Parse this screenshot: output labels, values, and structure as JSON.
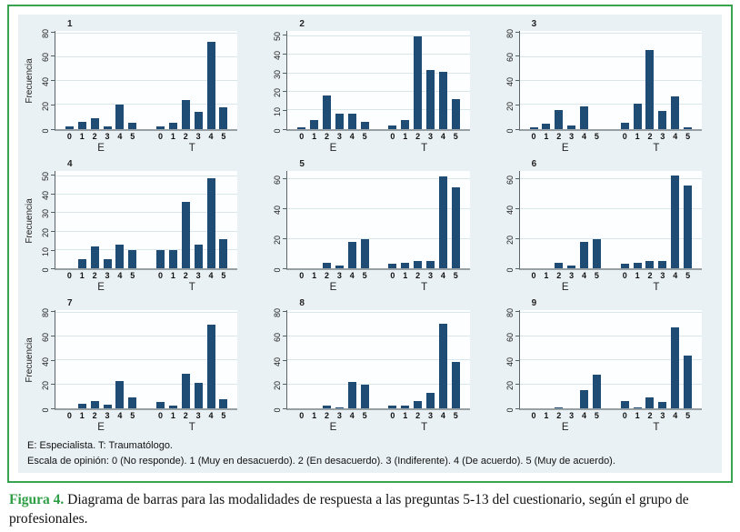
{
  "colors": {
    "bar": "#1e4c75",
    "frame_border": "#3aa34f",
    "graph_bg": "#eaf1f4",
    "plot_bg": "#fcfeff",
    "gridline": "#d9e7ea",
    "caption_accent": "#2e9e44"
  },
  "figure": {
    "notes_line1": "E: Especialista. T: Traumatólogo.",
    "notes_line2": "Escala de opinión: 0 (No responde). 1 (Muy en desacuerdo). 2 (En desacuerdo). 3 (Indiferente). 4 (De acuerdo). 5 (Muy de acuerdo).",
    "caption_label": "Figura 4.",
    "caption_text": " Diagrama de barras para las modalidades de respuesta a las preguntas 5-13 del cuestionario, según el grupo de profesionales."
  },
  "chart_data": [
    {
      "type": "bar",
      "title": "1",
      "ylabel": "Frecuencia",
      "categories": [
        "0",
        "1",
        "2",
        "3",
        "4",
        "5"
      ],
      "groups": [
        {
          "label": "E",
          "values": [
            2,
            6,
            9,
            2,
            20,
            5
          ]
        },
        {
          "label": "T",
          "values": [
            2,
            5,
            24,
            14,
            73,
            18
          ]
        }
      ],
      "yticks": [
        0,
        20,
        40,
        60,
        80
      ],
      "ylim": [
        0,
        82
      ],
      "grid": true
    },
    {
      "type": "bar",
      "title": "2",
      "ylabel": "",
      "categories": [
        "0",
        "1",
        "2",
        "3",
        "4",
        "5"
      ],
      "groups": [
        {
          "label": "E",
          "values": [
            1,
            5,
            18,
            8,
            8,
            4
          ]
        },
        {
          "label": "T",
          "values": [
            2,
            5,
            50,
            32,
            31,
            16
          ]
        }
      ],
      "yticks": [
        0,
        10,
        20,
        30,
        40,
        50
      ],
      "ylim": [
        0,
        53
      ],
      "grid": true
    },
    {
      "type": "bar",
      "title": "3",
      "ylabel": "",
      "categories": [
        "0",
        "1",
        "2",
        "3",
        "4",
        "5"
      ],
      "groups": [
        {
          "label": "E",
          "values": [
            1,
            4,
            16,
            3,
            19,
            0
          ]
        },
        {
          "label": "T",
          "values": [
            5,
            21,
            66,
            15,
            27,
            1
          ]
        }
      ],
      "yticks": [
        0,
        20,
        40,
        60,
        80
      ],
      "ylim": [
        0,
        82
      ],
      "grid": true
    },
    {
      "type": "bar",
      "title": "4",
      "ylabel": "Frecuencia",
      "categories": [
        "0",
        "1",
        "2",
        "3",
        "4",
        "5"
      ],
      "groups": [
        {
          "label": "E",
          "values": [
            0,
            5,
            12,
            5,
            13,
            10
          ]
        },
        {
          "label": "T",
          "values": [
            10,
            10,
            36,
            13,
            49,
            16
          ]
        }
      ],
      "yticks": [
        0,
        10,
        20,
        30,
        40,
        50
      ],
      "ylim": [
        0,
        53
      ],
      "grid": true
    },
    {
      "type": "bar",
      "title": "5",
      "ylabel": "",
      "categories": [
        "0",
        "1",
        "2",
        "3",
        "4",
        "5"
      ],
      "groups": [
        {
          "label": "E",
          "values": [
            0,
            0,
            4,
            2,
            18,
            20
          ]
        },
        {
          "label": "T",
          "values": [
            3,
            4,
            5,
            5,
            62,
            55
          ]
        }
      ],
      "yticks": [
        0,
        20,
        40,
        60
      ],
      "ylim": [
        0,
        66
      ],
      "grid": true
    },
    {
      "type": "bar",
      "title": "6",
      "ylabel": "",
      "categories": [
        "0",
        "1",
        "2",
        "3",
        "4",
        "5"
      ],
      "groups": [
        {
          "label": "E",
          "values": [
            0,
            0,
            4,
            2,
            18,
            20
          ]
        },
        {
          "label": "T",
          "values": [
            3,
            4,
            5,
            5,
            63,
            56
          ]
        }
      ],
      "yticks": [
        0,
        20,
        40,
        60
      ],
      "ylim": [
        0,
        66
      ],
      "grid": true
    },
    {
      "type": "bar",
      "title": "7",
      "ylabel": "Frecuencia",
      "categories": [
        "0",
        "1",
        "2",
        "3",
        "4",
        "5"
      ],
      "groups": [
        {
          "label": "E",
          "values": [
            0,
            4,
            6,
            3,
            23,
            9
          ]
        },
        {
          "label": "T",
          "values": [
            5,
            2,
            29,
            21,
            70,
            8
          ]
        }
      ],
      "yticks": [
        0,
        20,
        40,
        60,
        80
      ],
      "ylim": [
        0,
        82
      ],
      "grid": true
    },
    {
      "type": "bar",
      "title": "8",
      "ylabel": "",
      "categories": [
        "0",
        "1",
        "2",
        "3",
        "4",
        "5"
      ],
      "groups": [
        {
          "label": "E",
          "values": [
            0,
            0,
            2,
            1,
            22,
            20
          ]
        },
        {
          "label": "T",
          "values": [
            2,
            2,
            6,
            13,
            71,
            39
          ]
        }
      ],
      "yticks": [
        0,
        20,
        40,
        60,
        80
      ],
      "ylim": [
        0,
        82
      ],
      "grid": true
    },
    {
      "type": "bar",
      "title": "9",
      "ylabel": "",
      "categories": [
        "0",
        "1",
        "2",
        "3",
        "4",
        "5"
      ],
      "groups": [
        {
          "label": "E",
          "values": [
            0,
            0,
            1,
            0,
            15,
            28
          ]
        },
        {
          "label": "T",
          "values": [
            6,
            1,
            9,
            5,
            68,
            44
          ]
        }
      ],
      "yticks": [
        0,
        20,
        40,
        60,
        80
      ],
      "ylim": [
        0,
        82
      ],
      "grid": true
    }
  ]
}
